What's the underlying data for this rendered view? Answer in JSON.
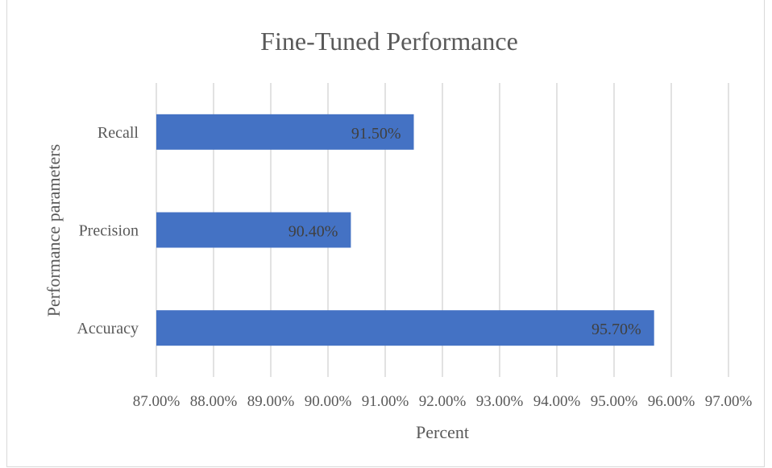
{
  "chart_data": {
    "type": "bar",
    "orientation": "horizontal",
    "title": "Fine-Tuned Performance",
    "xlabel": "Percent",
    "ylabel": "Performance parameters",
    "categories": [
      "Recall",
      "Precision",
      "Accuracy"
    ],
    "values": [
      91.5,
      90.4,
      95.7
    ],
    "data_labels": [
      "91.50%",
      "90.40%",
      "95.70%"
    ],
    "xlim": [
      87,
      97
    ],
    "xticks": [
      "87.00%",
      "88.00%",
      "89.00%",
      "90.00%",
      "91.00%",
      "92.00%",
      "93.00%",
      "94.00%",
      "95.00%",
      "96.00%",
      "97.00%"
    ],
    "grid": "vertical",
    "legend": "none",
    "bar_color": "#4472c4",
    "grid_color": "#d9d9d9",
    "text_color": "#595959"
  }
}
